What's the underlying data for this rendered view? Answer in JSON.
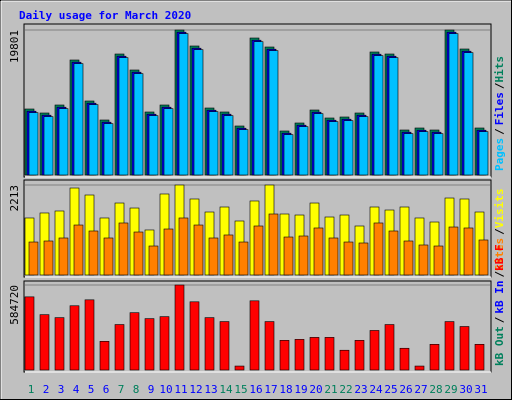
{
  "chart_data": [
    {
      "type": "bar",
      "title": "Daily usage for March 2020",
      "categories": [
        "1",
        "2",
        "3",
        "4",
        "5",
        "6",
        "7",
        "8",
        "9",
        "10",
        "11",
        "12",
        "13",
        "14",
        "15",
        "16",
        "17",
        "18",
        "19",
        "20",
        "21",
        "22",
        "23",
        "24",
        "25",
        "26",
        "27",
        "28",
        "29",
        "30",
        "31"
      ],
      "category_colors": [
        "#00805c",
        "#0000ff",
        "#0000ff",
        "#0000ff",
        "#0000ff",
        "#0000ff",
        "#00805c",
        "#00805c",
        "#0000ff",
        "#0000ff",
        "#0000ff",
        "#0000ff",
        "#0000ff",
        "#00805c",
        "#00805c",
        "#0000ff",
        "#0000ff",
        "#0000ff",
        "#0000ff",
        "#0000ff",
        "#00805c",
        "#00805c",
        "#0000ff",
        "#0000ff",
        "#0000ff",
        "#0000ff",
        "#0000ff",
        "#00805c",
        "#00805c",
        "#0000ff",
        "#0000ff"
      ],
      "legend_separator": "/",
      "ylim": [
        0,
        19801
      ],
      "yticks": [
        19801
      ],
      "series": [
        {
          "name": "Hits",
          "color": "#00805c",
          "values": [
            9013,
            8467,
            9559,
            15704,
            10105,
            7511,
            16523,
            14339,
            8603,
            9559,
            19801,
            17616,
            9149,
            8603,
            6691,
            18708,
            17479,
            6009,
            7101,
            8876,
            7784,
            7920,
            8467,
            16797,
            16523,
            6145,
            6418,
            6145,
            19801,
            17206,
            6418
          ]
        },
        {
          "name": "Files",
          "color": "#0000ff",
          "values": [
            8713,
            8167,
            9259,
            15404,
            9805,
            7211,
            16223,
            14039,
            8303,
            9259,
            19501,
            17316,
            8849,
            8303,
            6391,
            18408,
            17179,
            5709,
            6801,
            8576,
            7484,
            7620,
            8167,
            16497,
            16223,
            5845,
            6118,
            5845,
            19501,
            16906,
            6118
          ]
        },
        {
          "name": "Pages",
          "color": "#00c0ff",
          "values": [
            8513,
            7967,
            9059,
            15204,
            9605,
            7011,
            16023,
            13839,
            8103,
            9059,
            19301,
            17116,
            8649,
            8103,
            6191,
            18208,
            16979,
            5509,
            6601,
            8376,
            7284,
            7420,
            7967,
            16297,
            16023,
            5645,
            5918,
            5645,
            19301,
            16706,
            5918
          ]
        }
      ]
    },
    {
      "type": "bar",
      "legend_separator": "/",
      "ylim": [
        0,
        2213
      ],
      "yticks": [
        2213
      ],
      "series": [
        {
          "name": "Visits",
          "color": "#ffff00",
          "values": [
            1402,
            1525,
            1574,
            2139,
            1967,
            1402,
            1770,
            1647,
            1107,
            1992,
            2213,
            1869,
            1549,
            1672,
            1328,
            1820,
            2213,
            1500,
            1475,
            1770,
            1426,
            1475,
            1205,
            1672,
            1598,
            1672,
            1402,
            1303,
            1893,
            1869,
            1549
          ]
        },
        {
          "name": "Sites",
          "color": "#ff8000",
          "values": [
            811,
            836,
            910,
            1229,
            1082,
            910,
            1279,
            1057,
            713,
            1131,
            1402,
            1229,
            910,
            984,
            811,
            1205,
            1500,
            934,
            959,
            1156,
            910,
            811,
            787,
            1279,
            1082,
            836,
            738,
            713,
            1180,
            1156,
            861
          ]
        }
      ]
    },
    {
      "type": "bar",
      "legend_separator": "/",
      "ylim": [
        0,
        584720
      ],
      "yticks": [
        584720
      ],
      "series": [
        {
          "name": "kB F",
          "color": "#ff0000",
          "values": [
            503132,
            380750,
            360353,
            441938,
            482731,
            197173,
            312756,
            394348,
            353554,
            367152,
            584720,
            469133,
            360353,
            333157,
            27196,
            475932,
            333157,
            203971,
            210770,
            224369,
            224369,
            135981,
            203971,
            271963,
            312756,
            149579,
            27196,
            176776,
            333157,
            299159,
            176776
          ]
        },
        {
          "name": "kB In",
          "color": "#0000ff",
          "values": [
            0,
            0,
            0,
            0,
            0,
            0,
            0,
            0,
            0,
            0,
            0,
            0,
            0,
            0,
            0,
            0,
            0,
            0,
            0,
            0,
            0,
            0,
            0,
            0,
            0,
            0,
            0,
            0,
            0,
            0,
            0
          ]
        },
        {
          "name": "kB Out",
          "color": "#00805c",
          "values": [
            0,
            0,
            0,
            0,
            0,
            0,
            0,
            0,
            0,
            0,
            0,
            0,
            0,
            0,
            0,
            0,
            0,
            0,
            0,
            0,
            0,
            0,
            0,
            0,
            0,
            0,
            0,
            0,
            0,
            0,
            0
          ]
        }
      ]
    }
  ]
}
